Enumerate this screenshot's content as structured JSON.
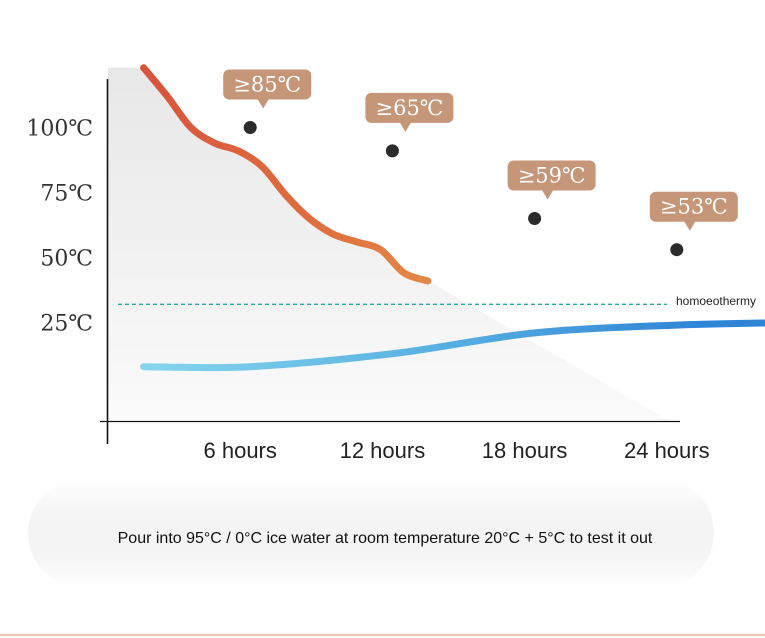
{
  "chart_data": {
    "type": "line",
    "categories": [
      "6 hours",
      "12 hours",
      "18 hours",
      "24 hours"
    ],
    "y_ticks": [
      "100℃",
      "75℃",
      "50℃",
      "25℃"
    ],
    "y_tick_values": [
      100,
      75,
      50,
      25
    ],
    "ylim": [
      0,
      112
    ],
    "series": [
      {
        "curve": "hot-water",
        "points": [
          [
            1.5,
            123
          ],
          [
            2.5,
            112
          ],
          [
            3.5,
            100
          ],
          [
            4.5,
            94
          ],
          [
            5.5,
            91
          ],
          [
            6.5,
            85
          ],
          [
            7.5,
            74
          ],
          [
            8.5,
            65
          ],
          [
            9.5,
            59
          ],
          [
            10.5,
            56
          ],
          [
            11.5,
            53
          ],
          [
            12.5,
            44
          ],
          [
            13.5,
            41
          ]
        ],
        "marked": [
          {
            "x": 6,
            "y": 100,
            "label": "≥85℃"
          },
          {
            "x": 12,
            "y": 91,
            "label": "≥65℃"
          },
          {
            "x": 18,
            "y": 65,
            "label": "≥59℃"
          },
          {
            "x": 24,
            "y": 53,
            "label": "≥53℃"
          }
        ],
        "colors": [
          "#d5493c",
          "#e0713f",
          "#e9a04b",
          "#e8c655"
        ]
      },
      {
        "curve": "ice-water",
        "points": [
          [
            1.5,
            8
          ],
          [
            6,
            8
          ],
          [
            12,
            13
          ],
          [
            18,
            21
          ],
          [
            24,
            24
          ],
          [
            29,
            25
          ]
        ],
        "colors": [
          "#8ad9ef",
          "#58b1e2",
          "#2f84d6"
        ]
      }
    ],
    "reference_line": {
      "y": 32,
      "label": "homoeothermy",
      "color": "#2aa5a8"
    },
    "grid": false
  },
  "caption": "Pour into 95°C / 0°C ice water at room temperature 20°C + 5°C to test it out",
  "colors": {
    "badge": "#c59678",
    "marker": "#2b2b2b",
    "axis": "#111111",
    "accent_rule": "#f1c7ad"
  }
}
